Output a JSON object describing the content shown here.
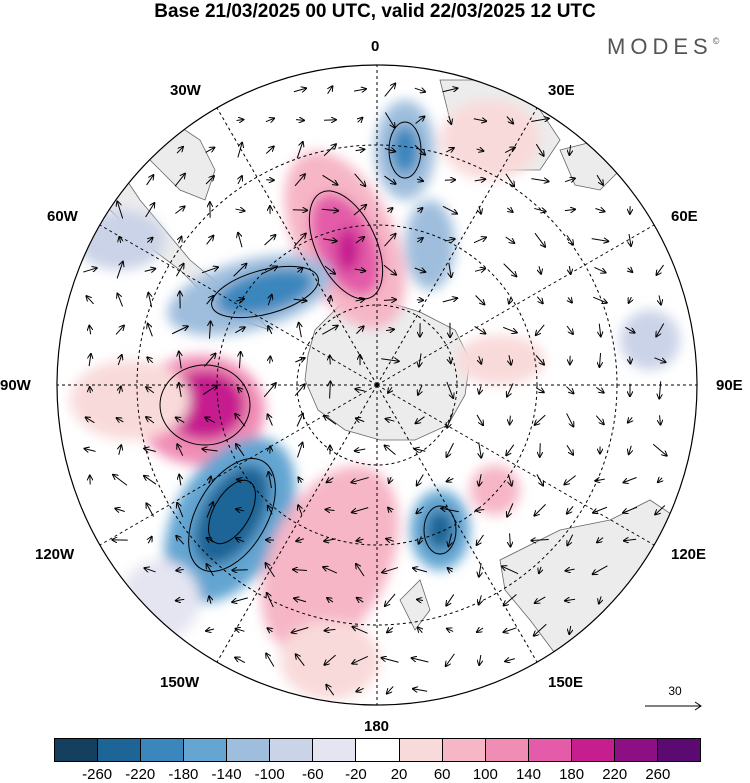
{
  "title": "Base 21/03/2025 00 UTC, valid 22/03/2025 12 UTC",
  "brand": {
    "name": "MODES",
    "mark": "©"
  },
  "map": {
    "projection": "south-polar-stereographic",
    "graticule": "dashed",
    "longitude_labels": {
      "lon_0": "0",
      "lon_30e": "30E",
      "lon_60e": "60E",
      "lon_90e": "90E",
      "lon_120e": "120E",
      "lon_150e": "150E",
      "lon_180": "180",
      "lon_150w": "150W",
      "lon_120w": "120W",
      "lon_90w": "90W",
      "lon_60w": "60W",
      "lon_30w": "30W"
    }
  },
  "reference_vector": {
    "value": "30"
  },
  "colorbar": {
    "colors": [
      "#143f5e",
      "#1d6596",
      "#3a86bd",
      "#64a5d2",
      "#9fbedd",
      "#cbd3e8",
      "#e5e5f2",
      "#ffffff",
      "#f9dada",
      "#f6b6c6",
      "#f08db5",
      "#e45ba9",
      "#c61e8f",
      "#8d0f84",
      "#5a0a70"
    ],
    "ticks": [
      "-260",
      "-220",
      "-180",
      "-140",
      "-100",
      "-60",
      "-20",
      "20",
      "60",
      "100",
      "140",
      "180",
      "220",
      "260"
    ]
  }
}
